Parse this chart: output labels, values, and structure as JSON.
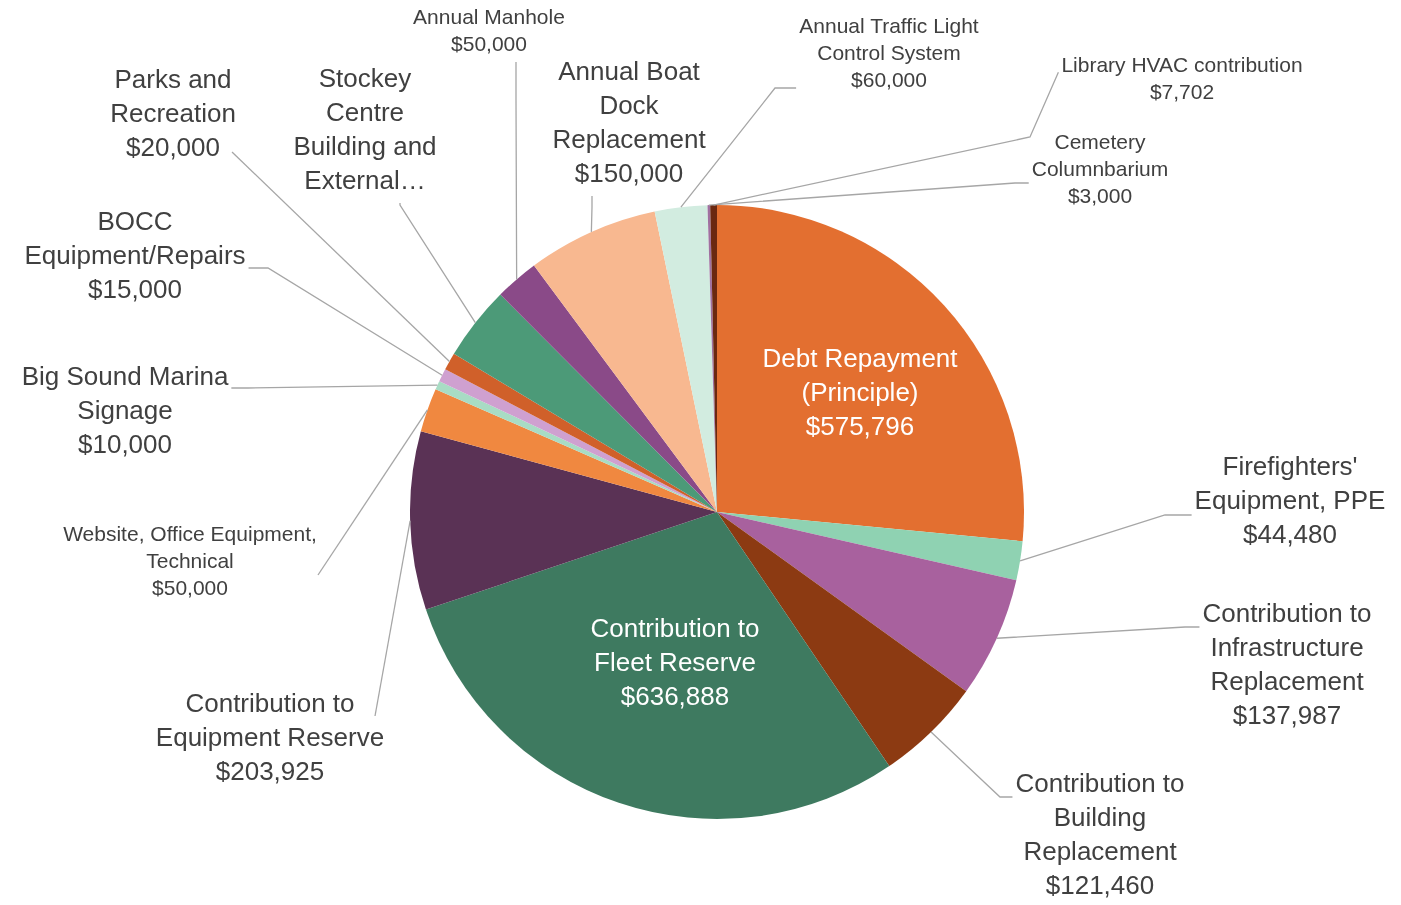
{
  "chart_data": {
    "type": "pie",
    "categories": [
      "Debt Repayment (Principle)",
      "Firefighters' Equipment, PPE",
      "Contribution to Infrastructure Replacement",
      "Contribution to Building Replacement",
      "Contribution to Fleet Reserve",
      "Contribution to Equipment Reserve",
      "Website, Office Equipment, Technical",
      "Big Sound Marina Signage",
      "BOCC Equipment/Repairs",
      "Parks and Recreation",
      "Stockey Centre Building and External…",
      "Annual Manhole",
      "Annual Boat Dock Replacement",
      "Annual Traffic Light Control System",
      "Cemetery Columnbarium",
      "Library HVAC contribution"
    ],
    "values": [
      575796,
      44480,
      137987,
      121460,
      636888,
      203925,
      50000,
      10000,
      15000,
      20000,
      85000,
      50000,
      150000,
      60000,
      3000,
      7702
    ],
    "value_labels": [
      "$575,796",
      "$44,480",
      "$137,987",
      "$121,460",
      "$636,888",
      "$203,925",
      "$50,000",
      "$10,000",
      "$15,000",
      "$20,000",
      null,
      "$50,000",
      "$150,000",
      "$60,000",
      "$3,000",
      "$7,702"
    ],
    "colors": [
      "#e36f30",
      "#8fd2b2",
      "#a8619e",
      "#8c3a12",
      "#3e7a60",
      "#5a3255",
      "#f08840",
      "#a8dcc4",
      "#cfa0d0",
      "#d0602a",
      "#4c9a78",
      "#8a4a88",
      "#f8b890",
      "#d2ece0",
      "#a070a0",
      "#6a2810"
    ],
    "legend": false
  }
}
